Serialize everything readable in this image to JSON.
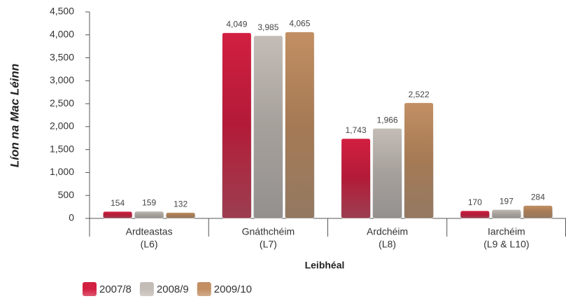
{
  "chart_data": {
    "type": "bar",
    "y_label": "Líon na Mac Léinn",
    "x_label": "Leibhéal",
    "categories": [
      [
        "Ardteastas",
        "(L6)"
      ],
      [
        "Gnáthchéim",
        "(L7)"
      ],
      [
        "Ardchéim",
        "(L8)"
      ],
      [
        "Iarchéim",
        "(L9 & L10)"
      ]
    ],
    "series": [
      {
        "name": "2007/8",
        "color": "#d21f41",
        "values": [
          154,
          4049,
          1743,
          170
        ],
        "value_labels": [
          "154",
          "4,049",
          "1,743",
          "170"
        ]
      },
      {
        "name": "2008/9",
        "color": "#c3bcb7",
        "values": [
          159,
          3985,
          1966,
          197
        ],
        "value_labels": [
          "159",
          "3,985",
          "1,966",
          "197"
        ]
      },
      {
        "name": "2009/10",
        "color": "#c28f63",
        "values": [
          132,
          4065,
          2522,
          284
        ],
        "value_labels": [
          "132",
          "4,065",
          "2,522",
          "284"
        ]
      }
    ],
    "ylim": [
      0,
      4500
    ],
    "yticks": [
      0,
      500,
      {
        "value": 1000,
        "label": "1,000"
      },
      {
        "value": 1500,
        "label": "1,500"
      },
      {
        "value": 2000,
        "label": "2,000"
      },
      {
        "value": 2500,
        "label": "2,500"
      },
      {
        "value": 3000,
        "label": "3,000"
      },
      {
        "value": 3500,
        "label": "3,500"
      },
      {
        "value": 4000,
        "label": "4,000"
      },
      {
        "value": 4500,
        "label": "4,500"
      }
    ],
    "legend": "bottom-left",
    "grid": false
  }
}
